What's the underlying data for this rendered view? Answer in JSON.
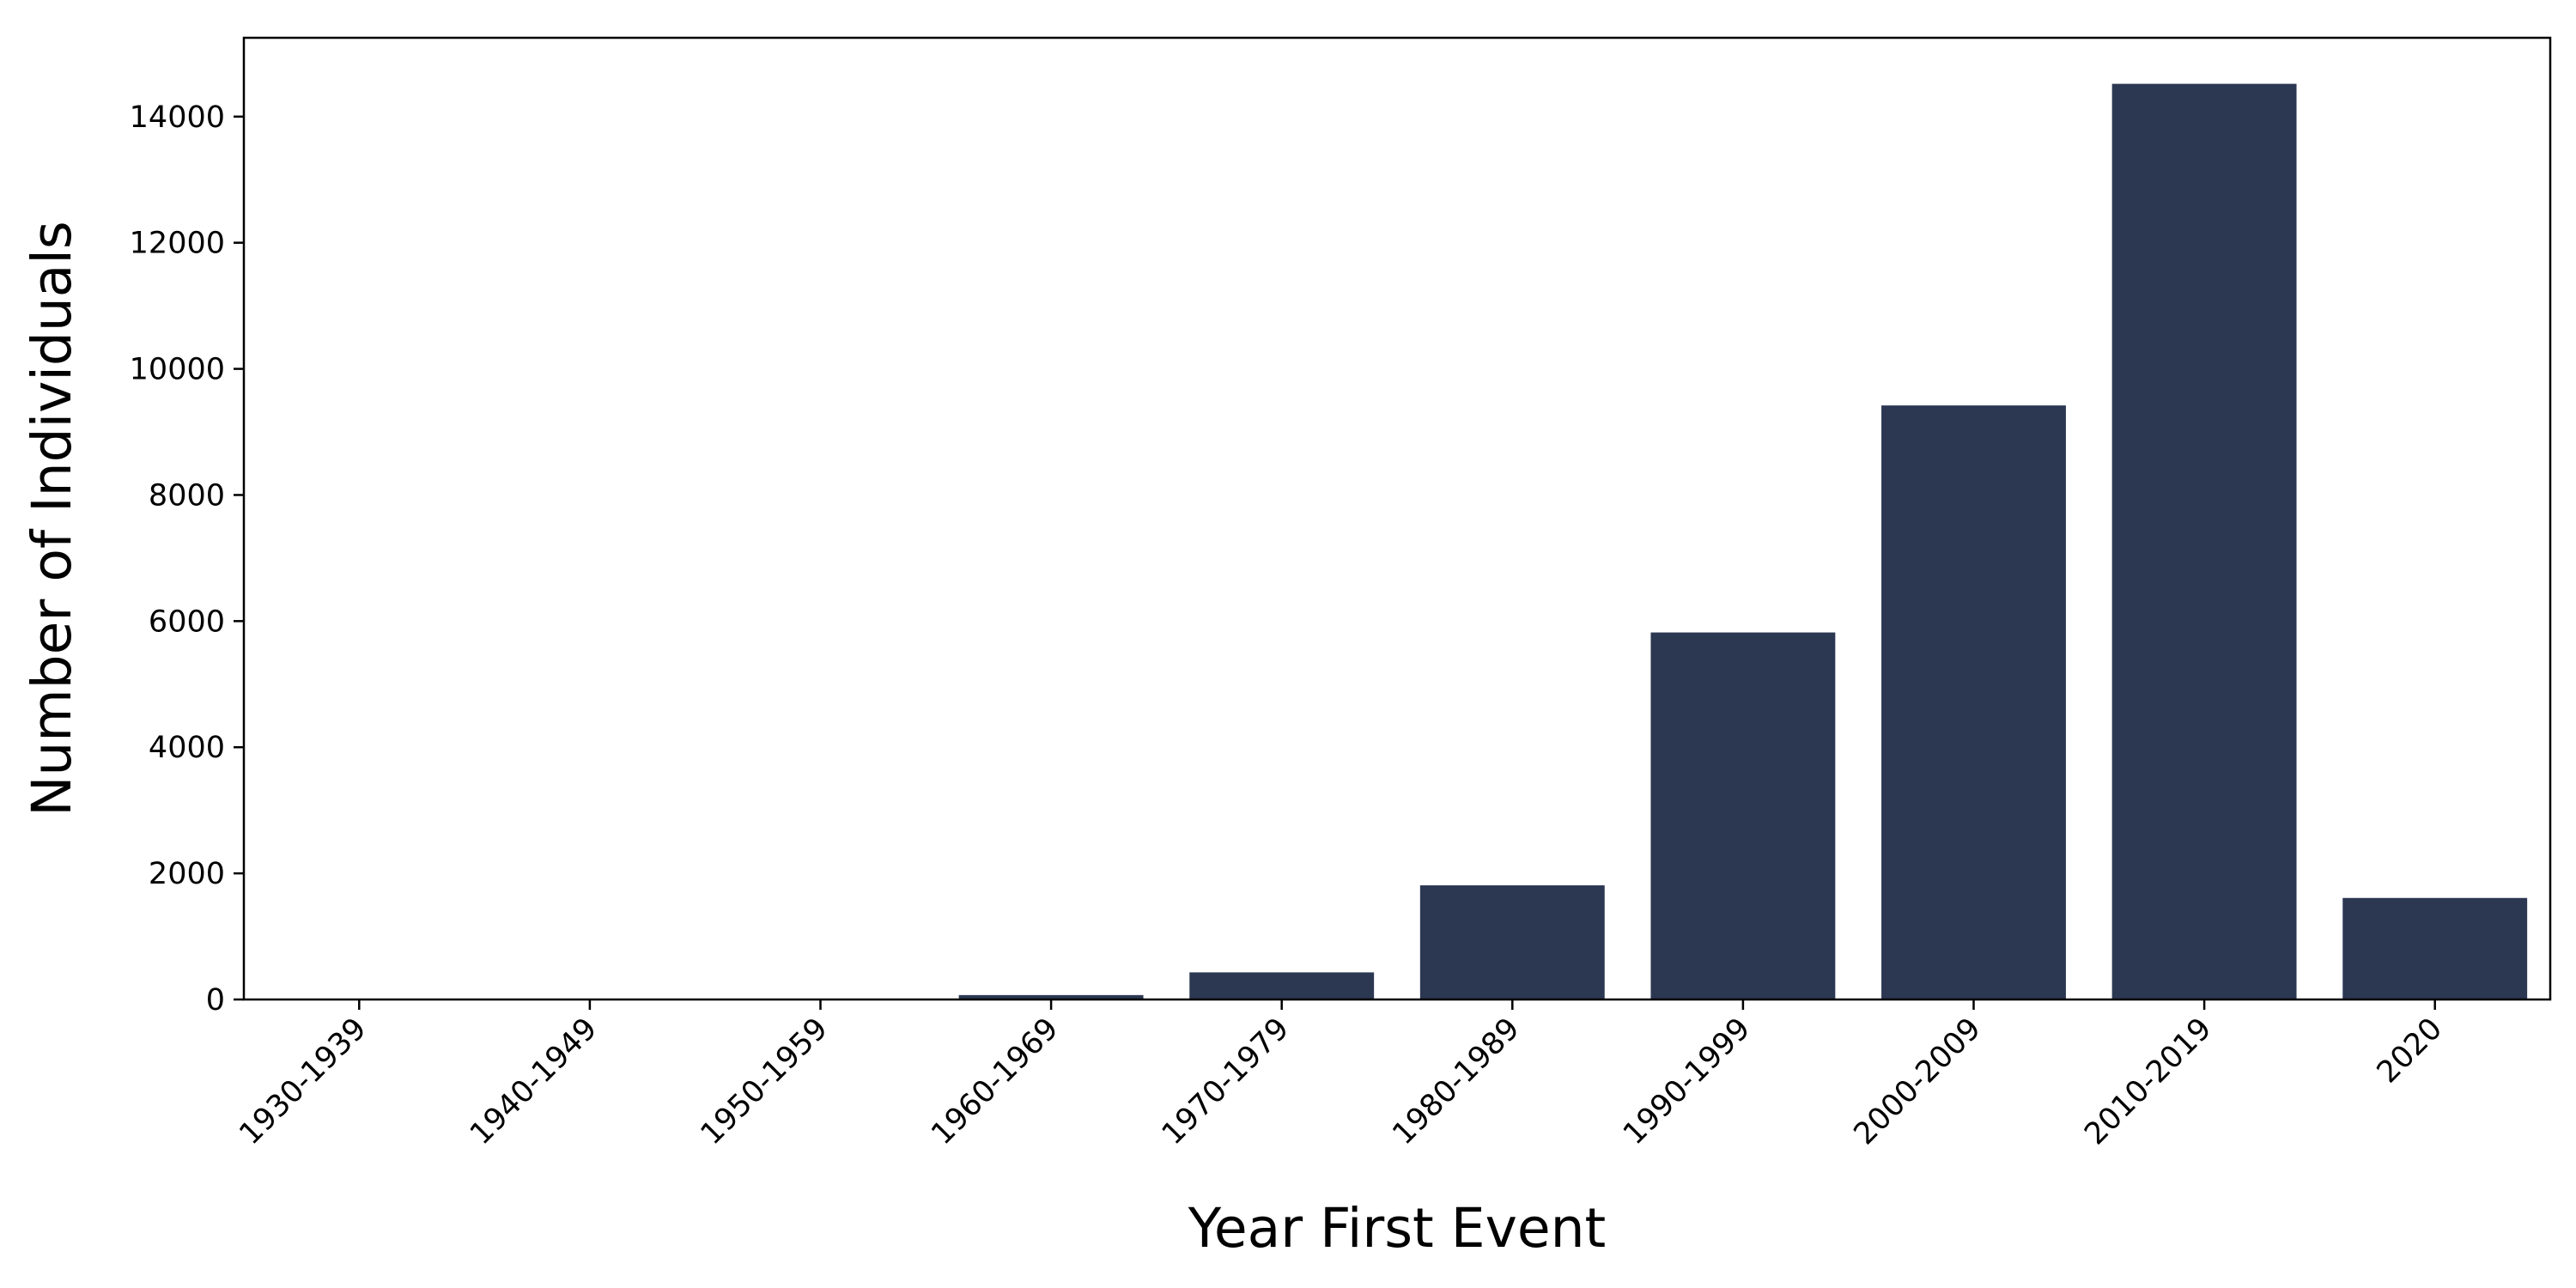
{
  "chart_data": {
    "type": "bar",
    "title": "",
    "xlabel": "Year First Event",
    "ylabel": "Number of Individuals",
    "categories": [
      "1930-1939",
      "1940-1949",
      "1950-1959",
      "1960-1969",
      "1970-1979",
      "1980-1989",
      "1990-1999",
      "2000-2009",
      "2010-2019",
      "2020"
    ],
    "values": [
      2,
      5,
      10,
      70,
      430,
      1810,
      5820,
      9420,
      14520,
      1610
    ],
    "ylim": [
      0,
      15250
    ],
    "yticks": [
      0,
      2000,
      4000,
      6000,
      8000,
      10000,
      12000,
      14000
    ],
    "ytick_labels": [
      "0",
      "2000",
      "4000",
      "6000",
      "8000",
      "10000",
      "12000",
      "14000"
    ],
    "grid": false,
    "legend": false,
    "colors": {
      "bar": "#2c3852",
      "axis": "#000000"
    }
  }
}
